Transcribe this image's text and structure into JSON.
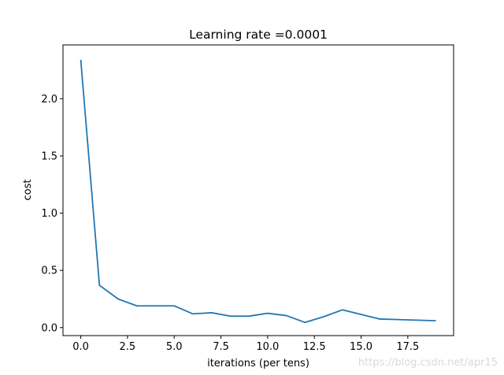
{
  "chart_data": {
    "type": "line",
    "title": "Learning rate =0.0001",
    "xlabel": "iterations (per tens)",
    "ylabel": "cost",
    "xlim": [
      -0.95,
      19.95
    ],
    "ylim": [
      -0.07,
      2.47
    ],
    "xticks": [
      0,
      2.5,
      5,
      7.5,
      10,
      12.5,
      15,
      17.5
    ],
    "xtick_labels": [
      "0.0",
      "2.5",
      "5.0",
      "7.5",
      "10.0",
      "12.5",
      "15.0",
      "17.5"
    ],
    "yticks": [
      0,
      0.5,
      1.0,
      1.5,
      2.0
    ],
    "ytick_labels": [
      "0.0",
      "0.5",
      "1.0",
      "1.5",
      "2.0"
    ],
    "grid": false,
    "series": [
      {
        "color": "#1f77b4",
        "x": [
          0,
          1,
          2,
          3,
          4,
          5,
          6,
          7,
          8,
          9,
          10,
          11,
          12,
          13,
          14,
          15,
          16,
          17,
          18,
          19
        ],
        "y": [
          2.34,
          0.37,
          0.25,
          0.19,
          0.19,
          0.19,
          0.12,
          0.13,
          0.1,
          0.1,
          0.125,
          0.105,
          0.045,
          0.095,
          0.155,
          0.115,
          0.075,
          0.07,
          0.065,
          0.06
        ]
      }
    ]
  },
  "watermark": "https://blog.csdn.net/apr15"
}
